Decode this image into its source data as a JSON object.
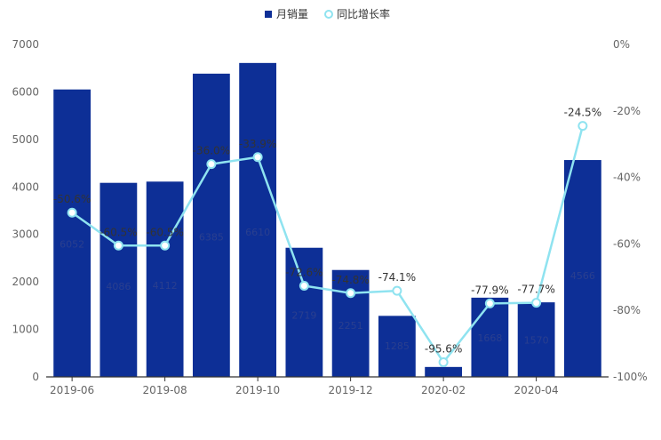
{
  "chart_data": {
    "type": "bar",
    "categories": [
      "2019-06",
      "2019-07",
      "2019-08",
      "2019-09",
      "2019-10",
      "2019-11",
      "2019-12",
      "2020-01",
      "2020-02",
      "2020-03",
      "2020-04",
      "2020-05"
    ],
    "x_tick_labels": [
      "2019-06",
      "2019-08",
      "2019-10",
      "2019-12",
      "2020-02",
      "2020-04"
    ],
    "series": [
      {
        "name": "月销量",
        "type": "bar",
        "axis": "left",
        "color": "#0d2f96",
        "values": [
          6052,
          4086,
          4112,
          6385,
          6610,
          2719,
          2251,
          1285,
          209,
          1668,
          1570,
          4566
        ],
        "labels": [
          "6052",
          "4086",
          "4112",
          "6385",
          "6610",
          "2719",
          "2251",
          "1285",
          "209",
          "1668",
          "1570",
          "4566"
        ]
      },
      {
        "name": "同比增长率",
        "type": "line",
        "axis": "right",
        "color": "#8fe3f0",
        "values": [
          -50.6,
          -60.5,
          -60.5,
          -36.0,
          -33.9,
          -72.6,
          -74.8,
          -74.1,
          -95.6,
          -77.9,
          -77.7,
          -24.5
        ],
        "labels": [
          "-50.6%",
          "-60.5%",
          "-60.5%",
          "-36.0%",
          "-33.9%",
          "-72.6%",
          "-74.8%",
          "-74.1%",
          "-95.6%",
          "-77.9%",
          "-77.7%",
          "-24.5%"
        ]
      }
    ],
    "y_left": {
      "min": 0,
      "max": 7000,
      "step": 1000,
      "ticks": [
        "0",
        "1000",
        "2000",
        "3000",
        "4000",
        "5000",
        "6000",
        "7000"
      ]
    },
    "y_right": {
      "min": -100,
      "max": 0,
      "step": 20,
      "ticks": [
        "-100%",
        "-80%",
        "-60%",
        "-40%",
        "-20%",
        "0%"
      ]
    },
    "legend": {
      "position": "top-center",
      "items": [
        "月销量",
        "同比增长率"
      ]
    },
    "grid": false
  }
}
